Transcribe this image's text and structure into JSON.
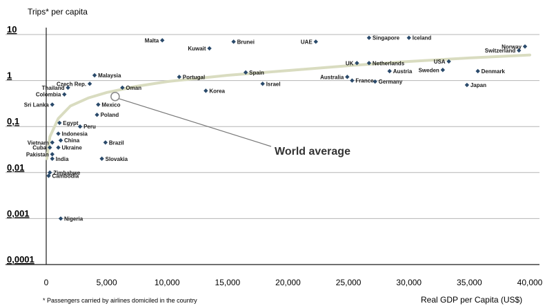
{
  "chart_data": {
    "type": "scatter",
    "ylabel": "Trips* per capita",
    "xlabel": "Real GDP per Capita (US$)",
    "footnote": "* Passengers carried by airlines domiciled in the country",
    "y_scale": "log",
    "xlim": [
      0,
      40000
    ],
    "ylim": [
      0.0001,
      10
    ],
    "x_ticks": [
      "0",
      "5,000",
      "10,000",
      "15,000",
      "20,000",
      "25,000",
      "30,000",
      "35,000",
      "40,000"
    ],
    "x_tick_values": [
      0,
      5000,
      10000,
      15000,
      20000,
      25000,
      30000,
      35000,
      40000
    ],
    "y_ticks": [
      "10",
      "1",
      "0,1",
      "0,01",
      "0,001",
      "0,0001"
    ],
    "y_tick_values": [
      10,
      1,
      0.1,
      0.01,
      0.001,
      0.0001
    ],
    "grid": true,
    "annotation": {
      "text": "World average",
      "x": 5700,
      "y": 0.45
    },
    "trend": {
      "x": [
        50,
        300,
        1000,
        2000,
        3500,
        5000,
        7500,
        10000,
        15000,
        20000,
        25000,
        30000,
        35000,
        40000
      ],
      "y": [
        0.02,
        0.06,
        0.15,
        0.28,
        0.42,
        0.55,
        0.75,
        0.95,
        1.3,
        1.65,
        2.1,
        2.6,
        3.1,
        3.6
      ]
    },
    "points": [
      {
        "label": "Malta",
        "x": 9600,
        "y": 7.5
      },
      {
        "label": "Brunei",
        "x": 15500,
        "y": 7.0
      },
      {
        "label": "Kuwait",
        "x": 13500,
        "y": 5.0
      },
      {
        "label": "UAE",
        "x": 22300,
        "y": 7.0
      },
      {
        "label": "Singapore",
        "x": 26700,
        "y": 8.5
      },
      {
        "label": "Iceland",
        "x": 30000,
        "y": 8.5
      },
      {
        "label": "Norway",
        "x": 39600,
        "y": 5.5
      },
      {
        "label": "Switzerland",
        "x": 39100,
        "y": 4.5
      },
      {
        "label": "USA",
        "x": 33300,
        "y": 2.6
      },
      {
        "label": "UK",
        "x": 25700,
        "y": 2.4
      },
      {
        "label": "Netherlands",
        "x": 26700,
        "y": 2.4
      },
      {
        "label": "Spain",
        "x": 16500,
        "y": 1.5
      },
      {
        "label": "Portugal",
        "x": 11000,
        "y": 1.2
      },
      {
        "label": "Austria",
        "x": 28400,
        "y": 1.6
      },
      {
        "label": "Sweden",
        "x": 32800,
        "y": 1.7
      },
      {
        "label": "Denmark",
        "x": 35700,
        "y": 1.6
      },
      {
        "label": "Australia",
        "x": 24900,
        "y": 1.2
      },
      {
        "label": "France",
        "x": 25300,
        "y": 1.0
      },
      {
        "label": "Germany",
        "x": 27200,
        "y": 0.95
      },
      {
        "label": "Japan",
        "x": 34800,
        "y": 0.8
      },
      {
        "label": "Israel",
        "x": 17900,
        "y": 0.85
      },
      {
        "label": "Korea",
        "x": 13200,
        "y": 0.6
      },
      {
        "label": "Malaysia",
        "x": 4000,
        "y": 1.3
      },
      {
        "label": "Oman",
        "x": 6300,
        "y": 0.7
      },
      {
        "label": "Czech Rep.",
        "x": 3600,
        "y": 0.85
      },
      {
        "label": "Thailand",
        "x": 1800,
        "y": 0.7
      },
      {
        "label": "Colombia",
        "x": 1500,
        "y": 0.5
      },
      {
        "label": "Sri Lanka",
        "x": 500,
        "y": 0.3
      },
      {
        "label": "Mexico",
        "x": 4300,
        "y": 0.3
      },
      {
        "label": "Poland",
        "x": 4200,
        "y": 0.18
      },
      {
        "label": "Egypt",
        "x": 1100,
        "y": 0.12
      },
      {
        "label": "Peru",
        "x": 2800,
        "y": 0.1
      },
      {
        "label": "Indonesia",
        "x": 1000,
        "y": 0.07
      },
      {
        "label": "China",
        "x": 1200,
        "y": 0.05
      },
      {
        "label": "Vietnam",
        "x": 500,
        "y": 0.045
      },
      {
        "label": "Cuba",
        "x": 300,
        "y": 0.035
      },
      {
        "label": "Ukraine",
        "x": 1000,
        "y": 0.035
      },
      {
        "label": "Pakistan",
        "x": 500,
        "y": 0.025
      },
      {
        "label": "Brazil",
        "x": 4900,
        "y": 0.045
      },
      {
        "label": "India",
        "x": 500,
        "y": 0.02
      },
      {
        "label": "Slovakia",
        "x": 4600,
        "y": 0.02
      },
      {
        "label": "Zimbabwe",
        "x": 300,
        "y": 0.01
      },
      {
        "label": "Cambodia",
        "x": 200,
        "y": 0.0085
      },
      {
        "label": "Nigeria",
        "x": 1200,
        "y": 0.001
      }
    ]
  }
}
